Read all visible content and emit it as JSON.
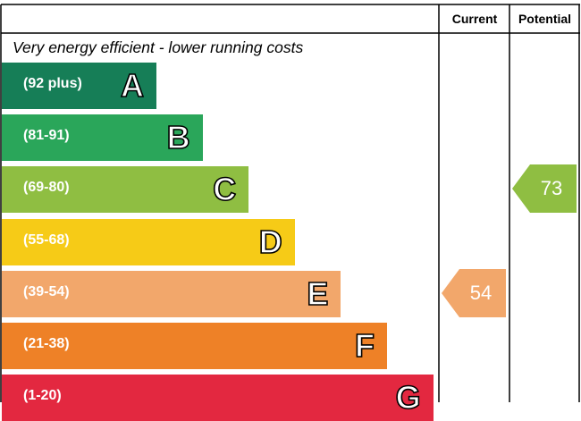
{
  "header": {
    "current_label": "Current",
    "potential_label": "Potential"
  },
  "subtitle": "Very energy efficient - lower running costs",
  "chart_data": {
    "type": "bar",
    "title": "",
    "bands": [
      {
        "letter": "A",
        "range": "(92 plus)",
        "min": 92,
        "max": 100,
        "color": "#167e57"
      },
      {
        "letter": "B",
        "range": "(81-91)",
        "min": 81,
        "max": 91,
        "color": "#2aa65a"
      },
      {
        "letter": "C",
        "range": "(69-80)",
        "min": 69,
        "max": 80,
        "color": "#8fbe42"
      },
      {
        "letter": "D",
        "range": "(55-68)",
        "min": 55,
        "max": 68,
        "color": "#f6cb17"
      },
      {
        "letter": "E",
        "range": "(39-54)",
        "min": 39,
        "max": 54,
        "color": "#f2a76b"
      },
      {
        "letter": "F",
        "range": "(21-38)",
        "min": 21,
        "max": 38,
        "color": "#ee8127"
      },
      {
        "letter": "G",
        "range": "(1-20)",
        "min": 1,
        "max": 20,
        "color": "#e32840"
      }
    ],
    "current": {
      "value": 54,
      "band": "E",
      "color": "#f2a76b"
    },
    "potential": {
      "value": 73,
      "band": "C",
      "color": "#8fbe42"
    }
  }
}
